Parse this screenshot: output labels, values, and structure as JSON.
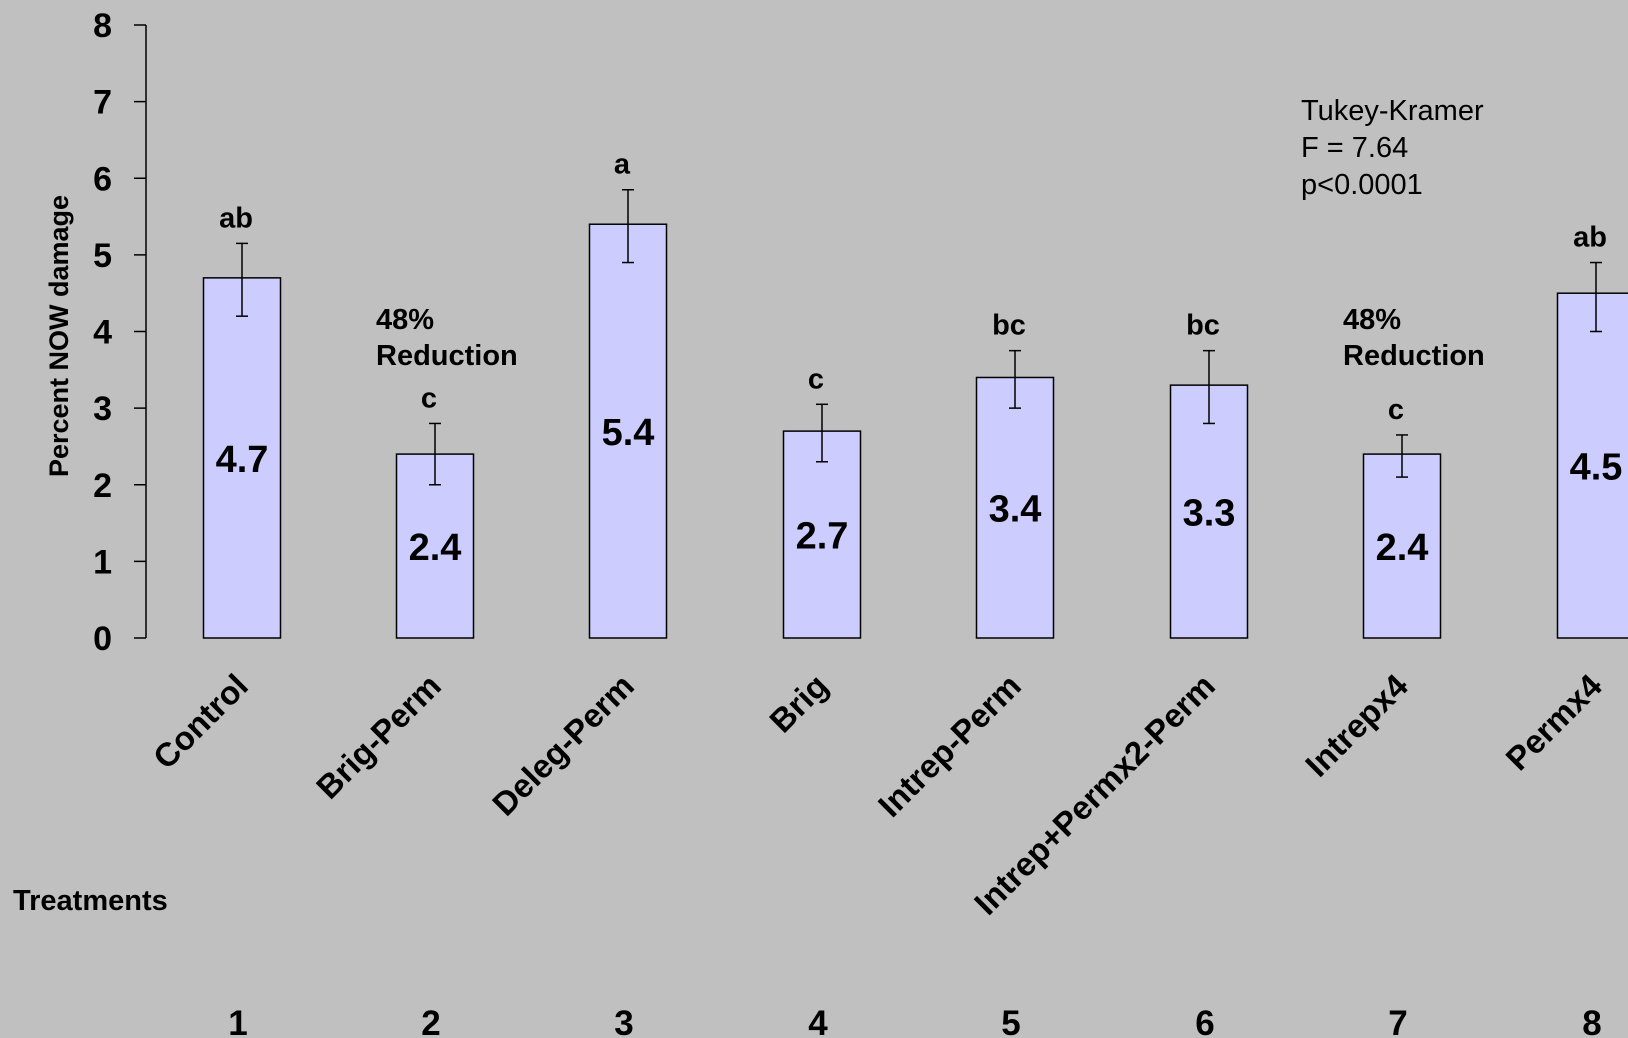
{
  "chart_data": {
    "type": "bar",
    "ylabel": "Percent NOW damage",
    "xlabel": "Treatments",
    "ylim": [
      0,
      8
    ],
    "yticks": [
      "0",
      "1",
      "2",
      "3",
      "4",
      "5",
      "6",
      "7",
      "8"
    ],
    "categories": [
      "Control",
      "Brig-Perm",
      "Deleg-Perm",
      "Brig",
      "Intrep-Perm",
      "Intrep+Permx2-Perm",
      "Intrepx4",
      "Permx4"
    ],
    "treatment_numbers": [
      "1",
      "2",
      "3",
      "4",
      "5",
      "6",
      "7",
      "8"
    ],
    "values": [
      4.7,
      2.4,
      5.4,
      2.7,
      3.4,
      3.3,
      2.4,
      4.5
    ],
    "value_labels": [
      "4.7",
      "2.4",
      "5.4",
      "2.7",
      "3.4",
      "3.3",
      "2.4",
      "4.5"
    ],
    "error_low": [
      4.2,
      2.0,
      4.9,
      2.3,
      3.0,
      2.8,
      2.1,
      4.0
    ],
    "error_high": [
      5.15,
      2.8,
      5.85,
      3.05,
      3.75,
      3.75,
      2.65,
      4.9
    ],
    "significance_letters": [
      "ab",
      "c",
      "a",
      "c",
      "bc",
      "bc",
      "c",
      "ab"
    ],
    "annotations": [
      {
        "category_index": 1,
        "lines": [
          "48%",
          "Reduction"
        ]
      },
      {
        "category_index": 6,
        "lines": [
          "48%",
          "Reduction"
        ]
      }
    ],
    "stats_text": [
      "Tukey-Kramer",
      "F = 7.64",
      "p<0.0001"
    ],
    "bar_color": "#ccccff",
    "background_color": "#c0c0c0",
    "grid": false,
    "legend": "none"
  }
}
